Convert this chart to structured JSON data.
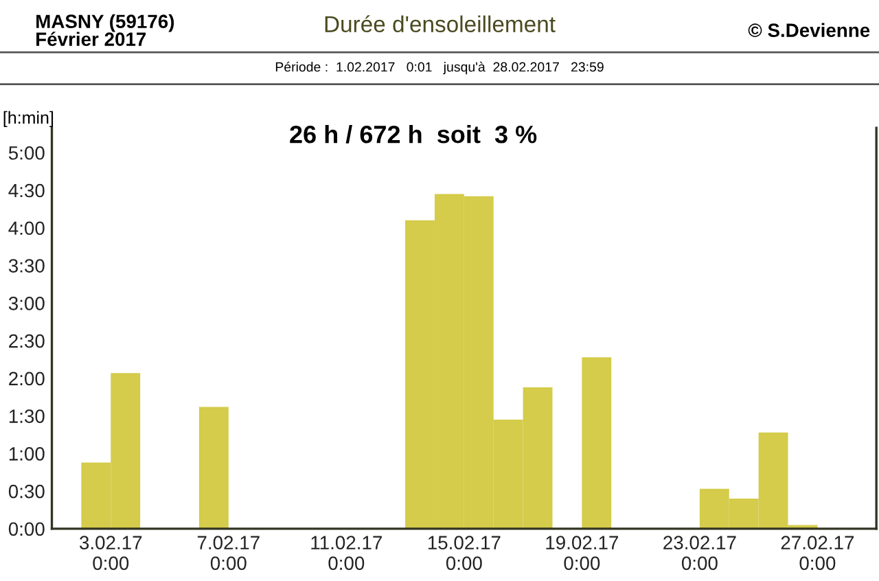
{
  "chart_data": {
    "type": "bar",
    "title": "Durée d'ensoleillement",
    "subtitle": "Période :  1.02.2017   0:01   jusqu'à  28.02.2017   23:59",
    "ylabel": "[h:min]",
    "annotations": [
      "MASNY (59176)\nFévrier 2017",
      "© S.Devienne",
      "26 h / 672 h  soit  3 %"
    ],
    "x": [
      "2017-02-01T12:00",
      "2017-02-02T12:00",
      "2017-02-03T12:00",
      "2017-02-04T12:00",
      "2017-02-05T12:00",
      "2017-02-06T12:00",
      "2017-02-07T12:00",
      "2017-02-08T12:00",
      "2017-02-09T12:00",
      "2017-02-10T12:00",
      "2017-02-11T12:00",
      "2017-02-12T12:00",
      "2017-02-13T12:00",
      "2017-02-14T12:00",
      "2017-02-15T12:00",
      "2017-02-16T12:00",
      "2017-02-17T12:00",
      "2017-02-18T12:00",
      "2017-02-19T12:00",
      "2017-02-20T12:00",
      "2017-02-21T12:00",
      "2017-02-22T12:00",
      "2017-02-23T12:00",
      "2017-02-24T12:00",
      "2017-02-25T12:00",
      "2017-02-26T12:00",
      "2017-02-27T12:00",
      "2017-02-28T12:00"
    ],
    "values": [
      0,
      0.88,
      2.07,
      0,
      0,
      1.62,
      0,
      0,
      0,
      0,
      0,
      0,
      4.1,
      4.45,
      4.42,
      1.45,
      1.88,
      0,
      2.28,
      0,
      0,
      0,
      0.53,
      0.4,
      1.28,
      0.05,
      0,
      0
    ],
    "color": "#d4cc4a",
    "xlim": [
      "2017-02-01",
      "2017-03-01"
    ],
    "xticks": [
      {
        "value": "2017-02-03",
        "label": "3.02.17\n0:00"
      },
      {
        "value": "2017-02-07",
        "label": "7.02.17\n0:00"
      },
      {
        "value": "2017-02-11",
        "label": "11.02.17\n0:00"
      },
      {
        "value": "2017-02-15",
        "label": "15.02.17\n0:00"
      },
      {
        "value": "2017-02-19",
        "label": "19.02.17\n0:00"
      },
      {
        "value": "2017-02-23",
        "label": "23.02.17\n0:00"
      },
      {
        "value": "2017-02-27",
        "label": "27.02.17\n0:00"
      }
    ],
    "ylim": [
      0,
      5.33
    ],
    "yticks": [
      {
        "value": 0,
        "label": "0:00"
      },
      {
        "value": 0.5,
        "label": "0:30"
      },
      {
        "value": 1,
        "label": "1:00"
      },
      {
        "value": 1.5,
        "label": "1:30"
      },
      {
        "value": 2,
        "label": "2:00"
      },
      {
        "value": 2.5,
        "label": "2:30"
      },
      {
        "value": 3,
        "label": "3:00"
      },
      {
        "value": 3.5,
        "label": "3:30"
      },
      {
        "value": 4,
        "label": "4:00"
      },
      {
        "value": 4.5,
        "label": "4:30"
      },
      {
        "value": 5,
        "label": "5:00"
      }
    ],
    "grid": false
  }
}
